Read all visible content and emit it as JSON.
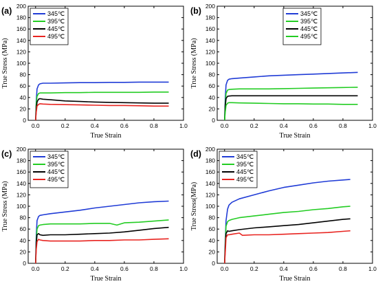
{
  "chart_data": [
    {
      "type": "line",
      "panel_label": "(a)",
      "xlabel": "True Strain",
      "ylabel": "True Stress (MPa)",
      "xlim": [
        -0.05,
        1.0
      ],
      "ylim": [
        0,
        200
      ],
      "xticks": [
        "0.0",
        "0.2",
        "0.4",
        "0.6",
        "0.8",
        "1.0"
      ],
      "yticks": [
        "0",
        "20",
        "40",
        "60",
        "80",
        "100",
        "120",
        "140",
        "160",
        "180",
        "200"
      ],
      "legend_position": "top-left",
      "series": [
        {
          "name": "345℃",
          "color": "#1f3bd6",
          "x": [
            0,
            0.005,
            0.01,
            0.02,
            0.03,
            0.05,
            0.1,
            0.2,
            0.3,
            0.4,
            0.5,
            0.6,
            0.7,
            0.8,
            0.9
          ],
          "y": [
            0,
            35,
            55,
            62,
            64,
            65,
            65,
            65.5,
            66,
            66,
            66.5,
            66.5,
            67,
            67,
            67
          ]
        },
        {
          "name": "395℃",
          "color": "#22cc22",
          "x": [
            0,
            0.005,
            0.01,
            0.02,
            0.03,
            0.05,
            0.1,
            0.2,
            0.3,
            0.4,
            0.5,
            0.6,
            0.7,
            0.8,
            0.9
          ],
          "y": [
            0,
            30,
            42,
            47,
            48,
            48,
            48,
            48.5,
            48.5,
            49,
            49,
            49,
            49,
            49.5,
            49.5
          ]
        },
        {
          "name": "445℃",
          "color": "#000000",
          "x": [
            0,
            0.005,
            0.01,
            0.02,
            0.03,
            0.05,
            0.1,
            0.2,
            0.3,
            0.4,
            0.5,
            0.6,
            0.7,
            0.8,
            0.9
          ],
          "y": [
            0,
            20,
            32,
            37,
            38,
            37,
            36,
            34,
            33,
            32,
            31.5,
            31,
            30.5,
            30,
            30
          ]
        },
        {
          "name": "495℃",
          "color": "#e8231f",
          "x": [
            0,
            0.005,
            0.01,
            0.02,
            0.03,
            0.05,
            0.1,
            0.2,
            0.3,
            0.4,
            0.5,
            0.6,
            0.7,
            0.8,
            0.9
          ],
          "y": [
            0,
            15,
            25,
            28,
            29,
            28.5,
            28,
            27.5,
            27,
            26.5,
            26,
            26,
            25.5,
            25,
            25
          ]
        }
      ]
    },
    {
      "type": "line",
      "panel_label": "(b)",
      "xlabel": "True Strain",
      "ylabel": "True Stress (MPa)",
      "xlim": [
        -0.05,
        1.0
      ],
      "ylim": [
        0,
        200
      ],
      "xticks": [
        "0.0",
        "0.2",
        "0.4",
        "0.6",
        "0.8",
        "1.0"
      ],
      "yticks": [
        "0",
        "20",
        "40",
        "60",
        "80",
        "100",
        "120",
        "140",
        "160",
        "180",
        "200"
      ],
      "legend_position": "top-right",
      "series": [
        {
          "name": "345℃",
          "color": "#1f3bd6",
          "x": [
            0,
            0.005,
            0.01,
            0.02,
            0.03,
            0.05,
            0.1,
            0.2,
            0.3,
            0.4,
            0.5,
            0.6,
            0.7,
            0.8,
            0.9
          ],
          "y": [
            0,
            40,
            62,
            70,
            72,
            73,
            74,
            76,
            78,
            79,
            80,
            81,
            82,
            83,
            84
          ]
        },
        {
          "name": "395℃",
          "color": "#22cc22",
          "x": [
            0,
            0.005,
            0.01,
            0.02,
            0.03,
            0.05,
            0.1,
            0.2,
            0.3,
            0.4,
            0.5,
            0.6,
            0.7,
            0.8,
            0.9
          ],
          "y": [
            0,
            30,
            47,
            53,
            54,
            54.5,
            55,
            55,
            55,
            55.5,
            56,
            56.5,
            57,
            57.5,
            58
          ]
        },
        {
          "name": "445℃",
          "color": "#000000",
          "x": [
            0,
            0.005,
            0.01,
            0.02,
            0.03,
            0.05,
            0.1,
            0.2,
            0.3,
            0.4,
            0.5,
            0.6,
            0.7,
            0.8,
            0.9
          ],
          "y": [
            0,
            25,
            38,
            42,
            42.5,
            43,
            43,
            43,
            43,
            43,
            43,
            43,
            43,
            43,
            43
          ]
        },
        {
          "name": "495℃",
          "color": "#22cc22",
          "x": [
            0,
            0.005,
            0.01,
            0.02,
            0.03,
            0.05,
            0.1,
            0.2,
            0.3,
            0.4,
            0.5,
            0.6,
            0.7,
            0.8,
            0.9
          ],
          "y": [
            0,
            15,
            26,
            30,
            31,
            31,
            30.5,
            30,
            29.5,
            29,
            29,
            28.5,
            28.5,
            28,
            28
          ]
        }
      ]
    },
    {
      "type": "line",
      "panel_label": "(c)",
      "xlabel": "True Strain",
      "ylabel": "True Stress (MPa)",
      "xlim": [
        -0.05,
        1.0
      ],
      "ylim": [
        0,
        200
      ],
      "xticks": [
        "0.0",
        "0.2",
        "0.4",
        "0.6",
        "0.8",
        "1.0"
      ],
      "yticks": [
        "0",
        "20",
        "40",
        "60",
        "80",
        "100",
        "120",
        "140",
        "160",
        "180",
        "200"
      ],
      "legend_position": "top-left",
      "series": [
        {
          "name": "345℃",
          "color": "#1f3bd6",
          "x": [
            0,
            0.005,
            0.01,
            0.02,
            0.03,
            0.05,
            0.1,
            0.2,
            0.3,
            0.4,
            0.5,
            0.6,
            0.7,
            0.8,
            0.9
          ],
          "y": [
            0,
            50,
            75,
            82,
            84,
            85,
            87,
            90,
            93,
            97,
            100,
            103,
            106,
            108,
            109
          ]
        },
        {
          "name": "395℃",
          "color": "#22cc22",
          "x": [
            0,
            0.005,
            0.01,
            0.02,
            0.03,
            0.05,
            0.1,
            0.2,
            0.3,
            0.4,
            0.5,
            0.55,
            0.6,
            0.7,
            0.8,
            0.9
          ],
          "y": [
            0,
            40,
            60,
            66,
            67,
            68,
            69,
            69,
            69,
            70,
            70,
            67,
            71,
            72,
            74,
            76
          ]
        },
        {
          "name": "445℃",
          "color": "#000000",
          "x": [
            0,
            0.005,
            0.01,
            0.02,
            0.03,
            0.05,
            0.1,
            0.2,
            0.3,
            0.4,
            0.5,
            0.6,
            0.7,
            0.8,
            0.9
          ],
          "y": [
            0,
            35,
            50,
            52,
            50,
            49,
            50,
            50,
            51,
            52,
            53,
            55,
            58,
            61,
            63
          ]
        },
        {
          "name": "495℃",
          "color": "#e8231f",
          "x": [
            0,
            0.005,
            0.01,
            0.02,
            0.03,
            0.05,
            0.1,
            0.2,
            0.3,
            0.4,
            0.5,
            0.6,
            0.7,
            0.8,
            0.9
          ],
          "y": [
            0,
            25,
            38,
            42,
            41,
            40,
            39,
            39,
            39,
            40,
            40,
            41,
            41,
            42,
            43
          ]
        }
      ]
    },
    {
      "type": "line",
      "panel_label": "(d)",
      "xlabel": "True Strain",
      "ylabel": "True Stress(MPa)",
      "xlim": [
        -0.05,
        1.0
      ],
      "ylim": [
        0,
        200
      ],
      "xticks": [
        "0.0",
        "0.2",
        "0.4",
        "0.6",
        "0.8",
        "1.0"
      ],
      "yticks": [
        "0",
        "20",
        "40",
        "60",
        "80",
        "100",
        "120",
        "140",
        "160",
        "180",
        "200"
      ],
      "legend_position": "top-left",
      "series": [
        {
          "name": "345℃",
          "color": "#1f3bd6",
          "x": [
            0,
            0.005,
            0.01,
            0.02,
            0.03,
            0.05,
            0.1,
            0.2,
            0.3,
            0.4,
            0.5,
            0.6,
            0.7,
            0.8,
            0.85
          ],
          "y": [
            0,
            40,
            75,
            95,
            102,
            107,
            113,
            120,
            127,
            133,
            137,
            141,
            144,
            146,
            147
          ]
        },
        {
          "name": "395℃",
          "color": "#22cc22",
          "x": [
            0,
            0.005,
            0.01,
            0.02,
            0.03,
            0.05,
            0.1,
            0.2,
            0.3,
            0.4,
            0.5,
            0.6,
            0.7,
            0.8,
            0.85
          ],
          "y": [
            0,
            35,
            65,
            73,
            75,
            77,
            80,
            83,
            86,
            89,
            91,
            94,
            96,
            99,
            100
          ]
        },
        {
          "name": "445℃",
          "color": "#000000",
          "x": [
            0,
            0.005,
            0.01,
            0.02,
            0.03,
            0.05,
            0.1,
            0.2,
            0.3,
            0.4,
            0.5,
            0.6,
            0.7,
            0.8,
            0.85
          ],
          "y": [
            0,
            30,
            52,
            57,
            56,
            57,
            59,
            62,
            64,
            66,
            68,
            71,
            74,
            77,
            78
          ]
        },
        {
          "name": "495℃",
          "color": "#e8231f",
          "x": [
            0,
            0.005,
            0.01,
            0.02,
            0.03,
            0.05,
            0.1,
            0.12,
            0.2,
            0.3,
            0.4,
            0.5,
            0.6,
            0.7,
            0.8,
            0.85
          ],
          "y": [
            0,
            20,
            45,
            50,
            50,
            51,
            53,
            49,
            50,
            50,
            51,
            52,
            53,
            54,
            56,
            57
          ]
        }
      ]
    }
  ]
}
